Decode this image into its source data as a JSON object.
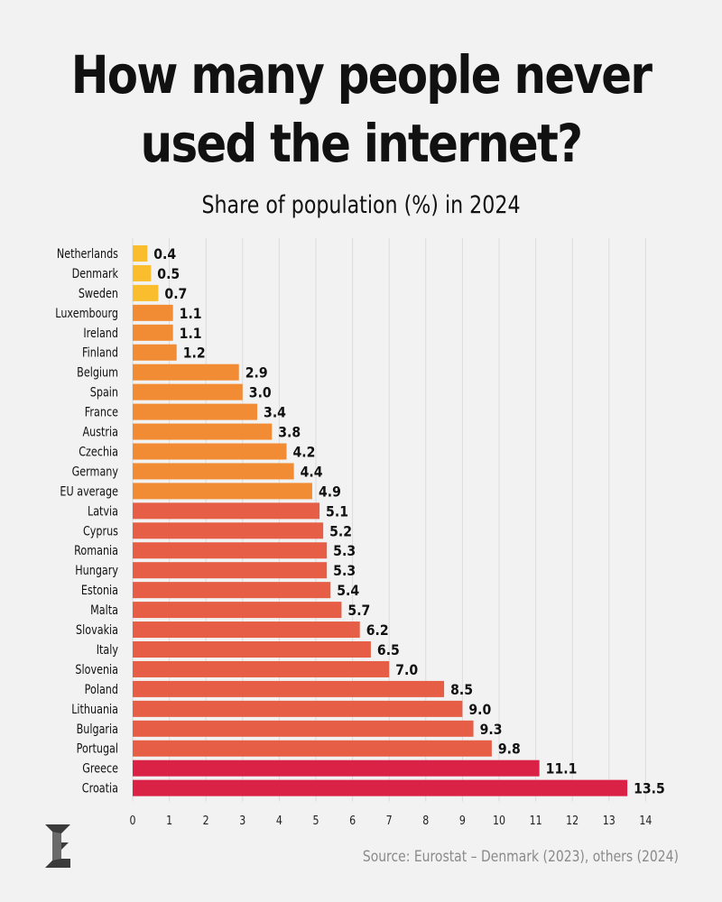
{
  "header": {
    "title_line1": "How many people never",
    "title_line2": "used the internet?",
    "subtitle": "Share of population (%) in 2024"
  },
  "footer": {
    "source": "Source: Eurostat – Denmark (2023), others (2024)"
  },
  "logo": {
    "icon": "publisher-logo-icon"
  },
  "colors": {
    "yellow": "#f9bd2d",
    "orange": "#f18c34",
    "coral": "#e65e45",
    "red": "#d92246",
    "grid": "#dcdcdc"
  },
  "chart_data": {
    "type": "bar",
    "orientation": "horizontal",
    "title": "How many people never used the internet?",
    "subtitle": "Share of population (%) in 2024",
    "xlabel": "",
    "ylabel": "",
    "xlim": [
      0,
      14
    ],
    "x_ticks": [
      0,
      1,
      2,
      3,
      4,
      5,
      6,
      7,
      8,
      9,
      10,
      11,
      12,
      13,
      14
    ],
    "grid": "vertical",
    "categories": [
      "Netherlands",
      "Denmark",
      "Sweden",
      "Luxembourg",
      "Ireland",
      "Finland",
      "Belgium",
      "Spain",
      "France",
      "Austria",
      "Czechia",
      "Germany",
      "EU average",
      "Latvia",
      "Cyprus",
      "Romania",
      "Hungary",
      "Estonia",
      "Malta",
      "Slovakia",
      "Italy",
      "Slovenia",
      "Poland",
      "Lithuania",
      "Bulgaria",
      "Portugal",
      "Greece",
      "Croatia"
    ],
    "values": [
      0.4,
      0.5,
      0.7,
      1.1,
      1.1,
      1.2,
      2.9,
      3.0,
      3.4,
      3.8,
      4.2,
      4.4,
      4.9,
      5.1,
      5.2,
      5.3,
      5.3,
      5.4,
      5.7,
      6.2,
      6.5,
      7.0,
      8.5,
      9.0,
      9.3,
      9.8,
      11.1,
      13.5
    ],
    "value_labels": [
      "0.4",
      "0.5",
      "0.7",
      "1.1",
      "1.1",
      "1.2",
      "2.9",
      "3.0",
      "3.4",
      "3.8",
      "4.2",
      "4.4",
      "4.9",
      "5.1",
      "5.2",
      "5.3",
      "5.3",
      "5.4",
      "5.7",
      "6.2",
      "6.5",
      "7.0",
      "8.5",
      "9.0",
      "9.3",
      "9.8",
      "11.1",
      "13.5"
    ],
    "bar_colors": [
      "yellow",
      "yellow",
      "yellow",
      "orange",
      "orange",
      "orange",
      "orange",
      "orange",
      "orange",
      "orange",
      "orange",
      "orange",
      "orange",
      "coral",
      "coral",
      "coral",
      "coral",
      "coral",
      "coral",
      "coral",
      "coral",
      "coral",
      "coral",
      "coral",
      "coral",
      "coral",
      "red",
      "red"
    ]
  }
}
